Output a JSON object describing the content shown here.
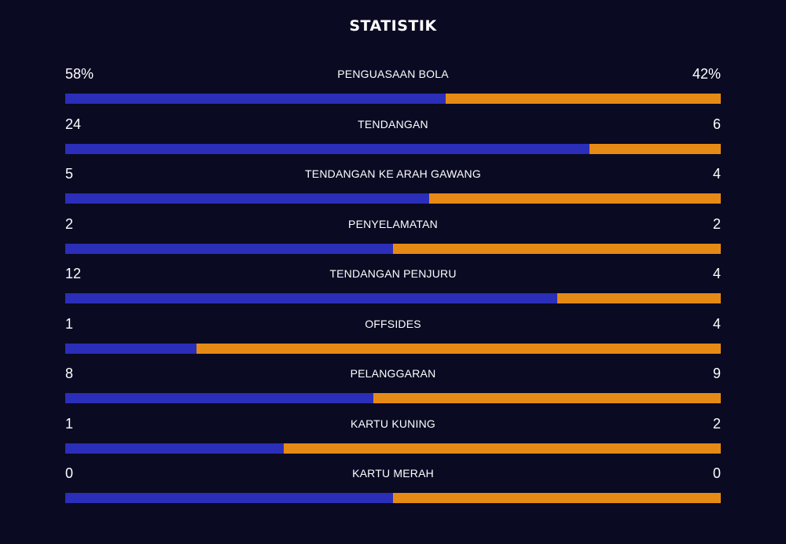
{
  "title": "STATISTIK",
  "colors": {
    "home": "#2b2eb8",
    "away": "#e68a16",
    "background": "#0a0a23"
  },
  "stats": [
    {
      "label": "PENGUASAAN BOLA",
      "home": "58%",
      "away": "42%",
      "home_share": 0.58
    },
    {
      "label": "TENDANGAN",
      "home": "24",
      "away": "6",
      "home_share": 0.8
    },
    {
      "label": "TENDANGAN KE ARAH GAWANG",
      "home": "5",
      "away": "4",
      "home_share": 0.5556
    },
    {
      "label": "PENYELAMATAN",
      "home": "2",
      "away": "2",
      "home_share": 0.5
    },
    {
      "label": "TENDANGAN PENJURU",
      "home": "12",
      "away": "4",
      "home_share": 0.75
    },
    {
      "label": "OFFSIDES",
      "home": "1",
      "away": "4",
      "home_share": 0.2
    },
    {
      "label": "PELANGGARAN",
      "home": "8",
      "away": "9",
      "home_share": 0.4706
    },
    {
      "label": "KARTU KUNING",
      "home": "1",
      "away": "2",
      "home_share": 0.3333
    },
    {
      "label": "KARTU MERAH",
      "home": "0",
      "away": "0",
      "home_share": 0.5
    }
  ]
}
